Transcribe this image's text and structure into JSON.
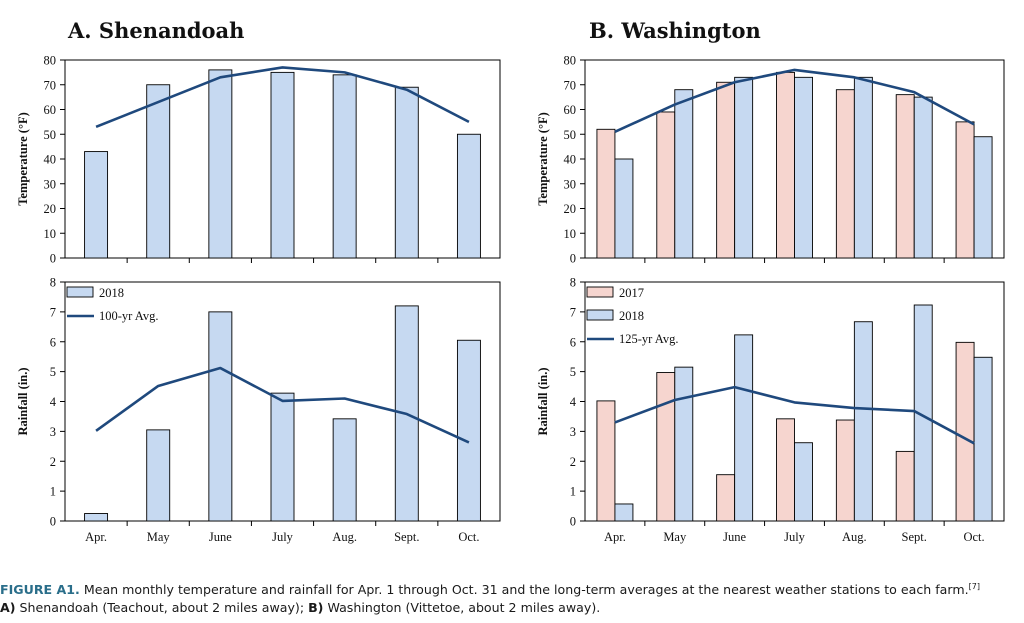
{
  "colors": {
    "bar_2017": "#f6d5cf",
    "bar_2018": "#c6d9f1",
    "avg_line": "#1f497d",
    "caption_label": "#2a6e8a"
  },
  "chart_data": [
    {
      "type": "bar",
      "id": "A-temp",
      "title": "A. Shenandoah",
      "ylabel": "Temperature (°F)",
      "ylim": [
        0,
        80
      ],
      "yticks": [
        0,
        10,
        20,
        30,
        40,
        50,
        60,
        70,
        80
      ],
      "categories": [
        "Apr.",
        "May",
        "June",
        "July",
        "Aug.",
        "Sept.",
        "Oct."
      ],
      "series": [
        {
          "name": "2018",
          "kind": "bar",
          "color": "#c6d9f1",
          "values": [
            43,
            70,
            76,
            75,
            74,
            69,
            50
          ]
        },
        {
          "name": "100-yr Avg.",
          "kind": "line",
          "color": "#1f497d",
          "values": [
            53,
            63,
            73,
            77,
            75,
            68,
            55
          ]
        }
      ]
    },
    {
      "type": "bar",
      "id": "A-rain",
      "title": "",
      "xlabel": "",
      "ylabel": "Rainfall (in.)",
      "ylim": [
        0,
        8
      ],
      "yticks": [
        0,
        1,
        2,
        3,
        4,
        5,
        6,
        7,
        8
      ],
      "categories": [
        "Apr.",
        "May",
        "June",
        "July",
        "Aug.",
        "Sept.",
        "Oct."
      ],
      "legend": [
        "2018",
        "100-yr Avg."
      ],
      "series": [
        {
          "name": "2018",
          "kind": "bar",
          "color": "#c6d9f1",
          "values": [
            0.25,
            3.05,
            7.0,
            4.28,
            3.42,
            7.2,
            6.05
          ]
        },
        {
          "name": "100-yr Avg.",
          "kind": "line",
          "color": "#1f497d",
          "values": [
            3.02,
            4.52,
            5.12,
            4.02,
            4.1,
            3.58,
            2.63
          ]
        }
      ]
    },
    {
      "type": "bar",
      "id": "B-temp",
      "title": "B. Washington",
      "ylabel": "Temperature (°F)",
      "ylim": [
        0,
        80
      ],
      "yticks": [
        0,
        10,
        20,
        30,
        40,
        50,
        60,
        70,
        80
      ],
      "categories": [
        "Apr.",
        "May",
        "June",
        "July",
        "Aug.",
        "Sept.",
        "Oct."
      ],
      "series": [
        {
          "name": "2017",
          "kind": "bar",
          "color": "#f6d5cf",
          "values": [
            52,
            59,
            71,
            75,
            68,
            66,
            55
          ]
        },
        {
          "name": "2018",
          "kind": "bar",
          "color": "#c6d9f1",
          "values": [
            40,
            68,
            73,
            73,
            73,
            65,
            49
          ]
        },
        {
          "name": "125-yr Avg.",
          "kind": "line",
          "color": "#1f497d",
          "values": [
            51,
            62,
            71,
            76,
            73,
            67,
            54
          ]
        }
      ]
    },
    {
      "type": "bar",
      "id": "B-rain",
      "title": "",
      "ylabel": "Rainfall (in.)",
      "ylim": [
        0,
        8
      ],
      "yticks": [
        0,
        1,
        2,
        3,
        4,
        5,
        6,
        7,
        8
      ],
      "categories": [
        "Apr.",
        "May",
        "June",
        "July",
        "Aug.",
        "Sept.",
        "Oct."
      ],
      "legend": [
        "2017",
        "2018",
        "125-yr Avg."
      ],
      "series": [
        {
          "name": "2017",
          "kind": "bar",
          "color": "#f6d5cf",
          "values": [
            4.02,
            4.97,
            1.55,
            3.42,
            3.38,
            2.33,
            5.98
          ]
        },
        {
          "name": "2018",
          "kind": "bar",
          "color": "#c6d9f1",
          "values": [
            0.57,
            5.15,
            6.23,
            2.62,
            6.67,
            7.23,
            5.48
          ]
        },
        {
          "name": "125-yr Avg.",
          "kind": "line",
          "color": "#1f497d",
          "values": [
            3.3,
            4.05,
            4.48,
            3.97,
            3.78,
            3.68,
            2.6
          ]
        }
      ]
    }
  ],
  "caption": {
    "label": "FIGURE A1.",
    "text": " Mean monthly temperature and rainfall for Apr. 1 through Oct. 31 and the long-term averages at the nearest weather stations to each farm.",
    "ref": "[7]",
    "a_label": "A)",
    "a_text": " Shenandoah (Teachout, about 2 miles away); ",
    "b_label": "B)",
    "b_text": " Washington (Vittetoe, about 2 miles away)."
  }
}
